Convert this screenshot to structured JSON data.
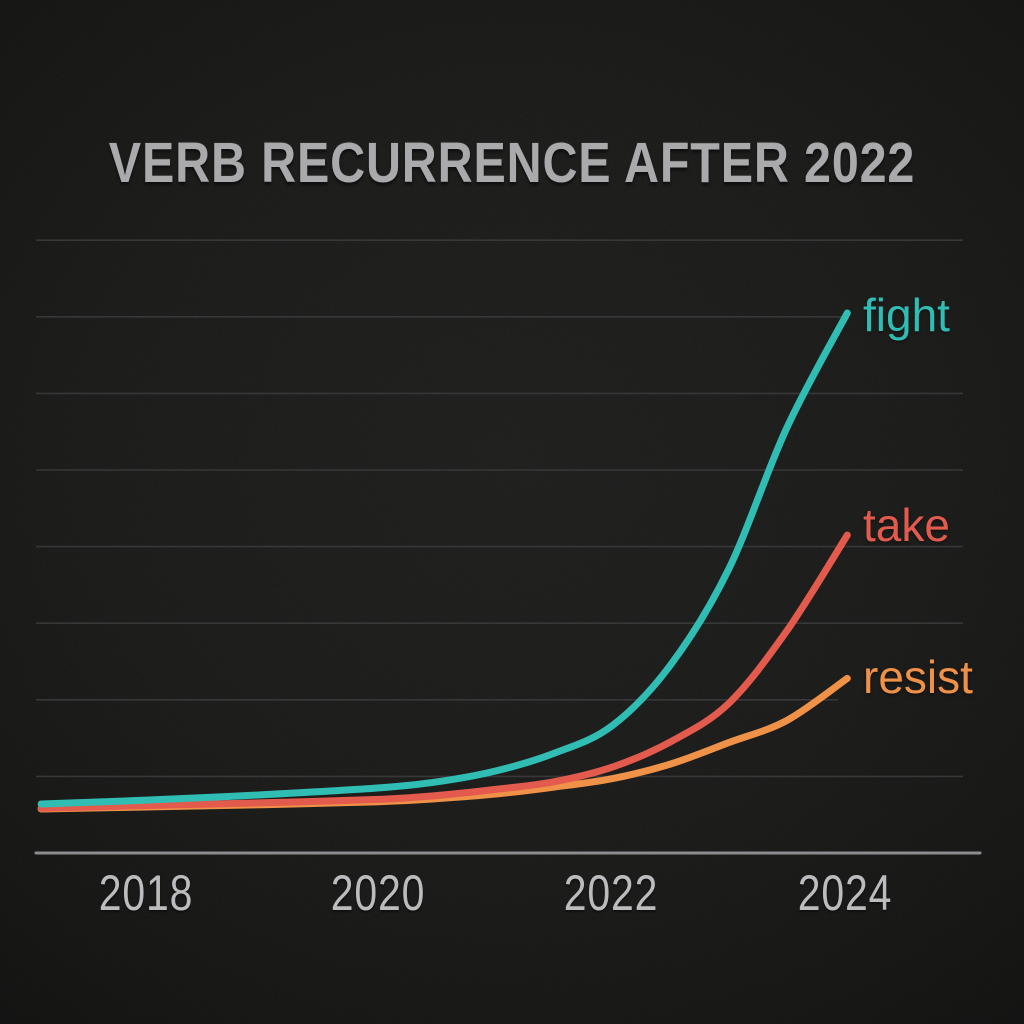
{
  "title": "VERB RECURRENCE AFTER 2022",
  "colors": {
    "background": "#101010",
    "title_text": "#a6a6a8",
    "tick_text": "#b9b9bb",
    "gridline": "#2d2d2f",
    "axis_line": "#87878b"
  },
  "chart_data": {
    "type": "line",
    "title": "VERB RECURRENCE AFTER 2022",
    "xlabel": "",
    "ylabel": "",
    "grid": "horizontal-only",
    "legend_position": "inline-right-of-line-ends",
    "x_range": [
      2017.1,
      2024.02
    ],
    "ylim": [
      0,
      8
    ],
    "y_axis_labeled": false,
    "xticks": [
      "2018",
      "2020",
      "2022",
      "2024"
    ],
    "xtick_years": [
      2018,
      2020,
      2022,
      2024
    ],
    "x": [
      2017.1,
      2018,
      2019,
      2020,
      2020.5,
      2021,
      2021.5,
      2022,
      2022.5,
      2023,
      2023.5,
      2024.02
    ],
    "series": [
      {
        "name": "fight",
        "color": "#25bab0",
        "values": [
          0.64,
          0.69,
          0.76,
          0.85,
          0.93,
          1.07,
          1.3,
          1.66,
          2.45,
          3.7,
          5.55,
          7.05
        ]
      },
      {
        "name": "take",
        "color": "#e25244",
        "values": [
          0.585,
          0.62,
          0.655,
          0.7,
          0.75,
          0.83,
          0.93,
          1.12,
          1.45,
          1.95,
          2.9,
          4.15
        ]
      },
      {
        "name": "resist",
        "color": "#ef8c3e",
        "values": [
          0.575,
          0.6,
          0.63,
          0.67,
          0.71,
          0.77,
          0.86,
          0.97,
          1.16,
          1.44,
          1.73,
          2.28
        ]
      }
    ]
  }
}
